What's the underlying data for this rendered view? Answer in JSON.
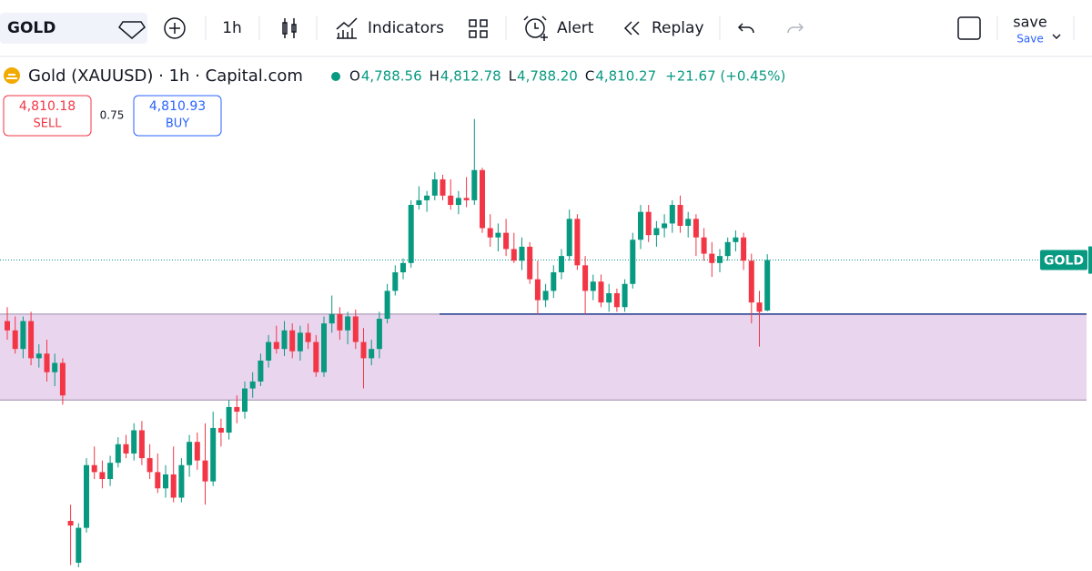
{
  "toolbar": {
    "symbol": "GOLD",
    "interval": "1h",
    "indicators": "Indicators",
    "alert": "Alert",
    "replay": "Replay",
    "save": "save",
    "save_sub": "Save"
  },
  "legend": {
    "name": "Gold (XAUUSD) · 1h · Capital.com",
    "o_label": "O",
    "o": "4,788.56",
    "h_label": "H",
    "h": "4,812.78",
    "l_label": "L",
    "l": "4,788.20",
    "c_label": "C",
    "c": "4,810.27",
    "change": "+21.67 (+0.45%)"
  },
  "trade": {
    "sell_price": "4,810.18",
    "sell": "SELL",
    "spread": "0.75",
    "buy_price": "4,810.93",
    "buy": "BUY"
  },
  "chart_data": {
    "type": "candlestick",
    "color_up": "#089981",
    "color_down": "#f23645",
    "ylim": [
      4678,
      4883
    ],
    "zone": {
      "top": 4787,
      "bottom": 4750
    },
    "level": 4787,
    "price_label": "GOLD",
    "open": [
      4784,
      4780,
      4772,
      4784,
      4768,
      4770,
      4762,
      4766,
      4698,
      4680,
      4695,
      4722,
      4719,
      4716,
      4723,
      4731,
      4727,
      4737,
      4725,
      4719,
      4712,
      4718,
      4708,
      4722,
      4732,
      4724,
      4715,
      4738,
      4736,
      4747,
      4745,
      4755,
      4758,
      4767,
      4775,
      4772,
      4780,
      4771,
      4779,
      4775,
      4762,
      4783,
      4787,
      4780,
      4786,
      4775,
      4768,
      4772,
      4785,
      4797,
      4805,
      4809,
      4834,
      4836,
      4838,
      4845,
      4838,
      4834,
      4837,
      4836,
      4849,
      4824,
      4820,
      4822,
      4815,
      4810,
      4816,
      4802,
      4793,
      4797,
      4805,
      4812,
      4828,
      4808,
      4797,
      4801,
      4792,
      4796,
      4790,
      4800,
      4819,
      4831,
      4821,
      4824,
      4826,
      4834,
      4825,
      4828,
      4820,
      4813,
      4809,
      4812,
      4818,
      4820,
      4810,
      4792,
      4788.56
    ],
    "high": [
      4790,
      4786,
      4786,
      4788,
      4774,
      4776,
      4770,
      4768,
      4705,
      4697,
      4725,
      4730,
      4724,
      4726,
      4734,
      4735,
      4740,
      4741,
      4731,
      4727,
      4722,
      4730,
      4725,
      4735,
      4736,
      4740,
      4745,
      4742,
      4750,
      4752,
      4758,
      4762,
      4770,
      4778,
      4782,
      4784,
      4783,
      4782,
      4783,
      4778,
      4786,
      4795,
      4790,
      4788,
      4789,
      4781,
      4776,
      4788,
      4800,
      4808,
      4811,
      4836,
      4842,
      4840,
      4848,
      4847,
      4845,
      4840,
      4846,
      4871,
      4850,
      4830,
      4826,
      4828,
      4822,
      4820,
      4818,
      4810,
      4800,
      4808,
      4815,
      4832,
      4830,
      4812,
      4804,
      4804,
      4800,
      4798,
      4802,
      4822,
      4834,
      4834,
      4827,
      4830,
      4836,
      4838,
      4831,
      4830,
      4824,
      4818,
      4815,
      4820,
      4823,
      4822,
      4813,
      4797,
      4812.78
    ],
    "low": [
      4776,
      4770,
      4768,
      4765,
      4764,
      4758,
      4756,
      4748,
      4679,
      4678,
      4693,
      4716,
      4712,
      4713,
      4721,
      4725,
      4724,
      4722,
      4716,
      4710,
      4708,
      4706,
      4706,
      4717,
      4720,
      4705,
      4713,
      4730,
      4733,
      4740,
      4742,
      4751,
      4756,
      4764,
      4770,
      4769,
      4768,
      4767,
      4772,
      4760,
      4760,
      4779,
      4776,
      4774,
      4772,
      4755,
      4765,
      4768,
      4783,
      4795,
      4802,
      4807,
      4832,
      4831,
      4836,
      4836,
      4832,
      4830,
      4833,
      4834,
      4822,
      4816,
      4814,
      4812,
      4809,
      4806,
      4800,
      4787,
      4790,
      4794,
      4802,
      4810,
      4806,
      4787,
      4793,
      4790,
      4788,
      4788,
      4788,
      4798,
      4815,
      4818,
      4816,
      4820,
      4822,
      4822,
      4820,
      4812,
      4810,
      4803,
      4805,
      4810,
      4814,
      4806,
      4783,
      4773,
      4788.2
    ],
    "close": [
      4780,
      4772,
      4784,
      4768,
      4770,
      4762,
      4766,
      4752,
      4696,
      4695,
      4722,
      4719,
      4716,
      4723,
      4731,
      4727,
      4737,
      4725,
      4719,
      4712,
      4718,
      4708,
      4722,
      4732,
      4724,
      4715,
      4738,
      4736,
      4747,
      4745,
      4755,
      4758,
      4767,
      4775,
      4772,
      4780,
      4771,
      4779,
      4775,
      4762,
      4783,
      4787,
      4780,
      4786,
      4775,
      4768,
      4772,
      4785,
      4797,
      4805,
      4809,
      4834,
      4836,
      4838,
      4845,
      4838,
      4834,
      4837,
      4836,
      4849,
      4824,
      4820,
      4822,
      4815,
      4810,
      4816,
      4802,
      4793,
      4797,
      4805,
      4812,
      4828,
      4808,
      4797,
      4801,
      4792,
      4796,
      4790,
      4800,
      4819,
      4831,
      4821,
      4824,
      4826,
      4834,
      4825,
      4828,
      4820,
      4813,
      4809,
      4812,
      4818,
      4820,
      4810,
      4792,
      4788,
      4810.27
    ]
  }
}
